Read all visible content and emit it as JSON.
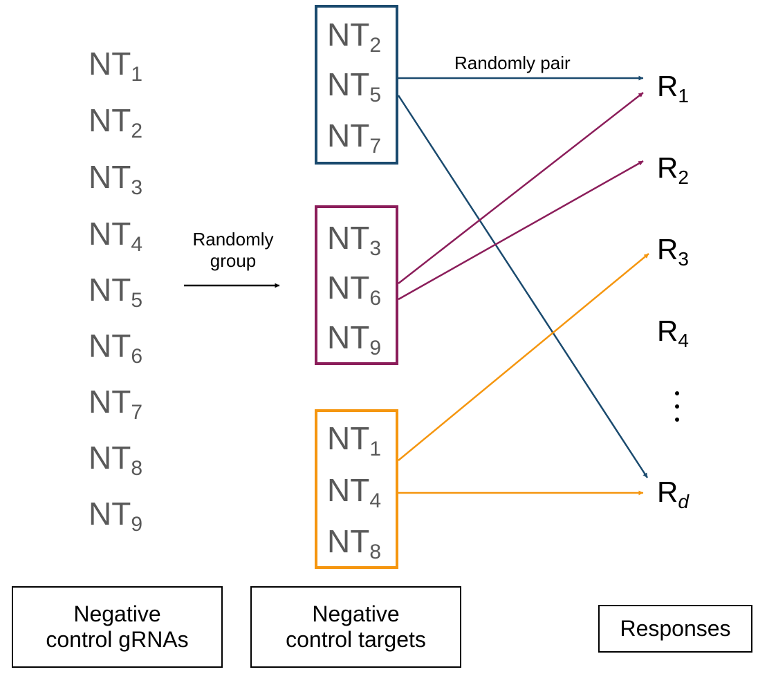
{
  "colors": {
    "group_1": "#1a4a6e",
    "group_2": "#8b1d5a",
    "group_3": "#f5960f",
    "grna_text": "#595959",
    "neutral": "#000000"
  },
  "grnas": [
    {
      "base": "NT",
      "sub": "1"
    },
    {
      "base": "NT",
      "sub": "2"
    },
    {
      "base": "NT",
      "sub": "3"
    },
    {
      "base": "NT",
      "sub": "4"
    },
    {
      "base": "NT",
      "sub": "5"
    },
    {
      "base": "NT",
      "sub": "6"
    },
    {
      "base": "NT",
      "sub": "7"
    },
    {
      "base": "NT",
      "sub": "8"
    },
    {
      "base": "NT",
      "sub": "9"
    }
  ],
  "groups": [
    {
      "members": [
        {
          "base": "NT",
          "sub": "2"
        },
        {
          "base": "NT",
          "sub": "5"
        },
        {
          "base": "NT",
          "sub": "7"
        }
      ]
    },
    {
      "members": [
        {
          "base": "NT",
          "sub": "3"
        },
        {
          "base": "NT",
          "sub": "6"
        },
        {
          "base": "NT",
          "sub": "9"
        }
      ]
    },
    {
      "members": [
        {
          "base": "NT",
          "sub": "1"
        },
        {
          "base": "NT",
          "sub": "4"
        },
        {
          "base": "NT",
          "sub": "8"
        }
      ]
    }
  ],
  "responses": [
    {
      "base": "R",
      "sub": "1"
    },
    {
      "base": "R",
      "sub": "2"
    },
    {
      "base": "R",
      "sub": "3"
    },
    {
      "base": "R",
      "sub": "4"
    },
    {
      "base": "R",
      "sub": "d"
    }
  ],
  "actions": {
    "group_line1": "Randomly",
    "group_line2": "group",
    "pair": "Randomly pair"
  },
  "pairings": [
    {
      "from": "NT5",
      "to": "R1",
      "group": 1
    },
    {
      "from": "NT5",
      "to": "Rd",
      "group": 1
    },
    {
      "from": "NT6",
      "to": "R1",
      "group": 2
    },
    {
      "from": "NT6",
      "to": "R2",
      "group": 2
    },
    {
      "from": "NT1",
      "to": "R3",
      "group": 3
    },
    {
      "from": "NT4",
      "to": "Rd",
      "group": 3
    }
  ],
  "captions": {
    "grnas_line1": "Negative",
    "grnas_line2": "control gRNAs",
    "targets_line1": "Negative",
    "targets_line2": "control targets",
    "responses": "Responses"
  }
}
